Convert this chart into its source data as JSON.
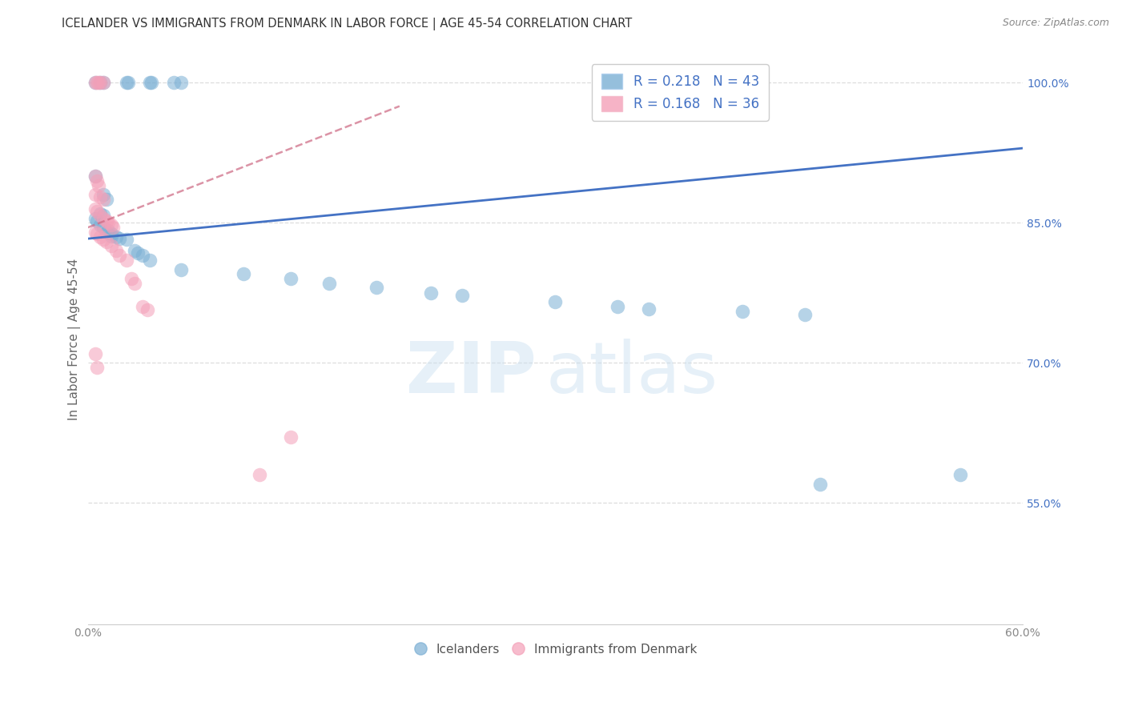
{
  "title": "ICELANDER VS IMMIGRANTS FROM DENMARK IN LABOR FORCE | AGE 45-54 CORRELATION CHART",
  "source": "Source: ZipAtlas.com",
  "ylabel": "In Labor Force | Age 45-54",
  "xmin": 0.0,
  "xmax": 0.6,
  "ymin": 0.42,
  "ymax": 1.03,
  "blue_line_x": [
    0.0,
    0.6
  ],
  "blue_line_y": [
    0.833,
    0.93
  ],
  "pink_line_x": [
    0.0,
    0.2
  ],
  "pink_line_y": [
    0.845,
    0.975
  ],
  "blue_points": [
    [
      0.005,
      1.0
    ],
    [
      0.008,
      1.0
    ],
    [
      0.01,
      1.0
    ],
    [
      0.025,
      1.0
    ],
    [
      0.026,
      1.0
    ],
    [
      0.04,
      1.0
    ],
    [
      0.041,
      1.0
    ],
    [
      0.055,
      1.0
    ],
    [
      0.06,
      1.0
    ],
    [
      0.005,
      0.9
    ],
    [
      0.01,
      0.88
    ],
    [
      0.012,
      0.875
    ],
    [
      0.008,
      0.86
    ],
    [
      0.01,
      0.858
    ],
    [
      0.005,
      0.855
    ],
    [
      0.006,
      0.852
    ],
    [
      0.008,
      0.848
    ],
    [
      0.01,
      0.845
    ],
    [
      0.012,
      0.84
    ],
    [
      0.013,
      0.842
    ],
    [
      0.015,
      0.838
    ],
    [
      0.015,
      0.836
    ],
    [
      0.018,
      0.835
    ],
    [
      0.02,
      0.833
    ],
    [
      0.025,
      0.832
    ],
    [
      0.03,
      0.82
    ],
    [
      0.032,
      0.818
    ],
    [
      0.035,
      0.815
    ],
    [
      0.04,
      0.81
    ],
    [
      0.06,
      0.8
    ],
    [
      0.1,
      0.795
    ],
    [
      0.13,
      0.79
    ],
    [
      0.155,
      0.785
    ],
    [
      0.185,
      0.781
    ],
    [
      0.22,
      0.775
    ],
    [
      0.24,
      0.772
    ],
    [
      0.3,
      0.765
    ],
    [
      0.34,
      0.76
    ],
    [
      0.36,
      0.758
    ],
    [
      0.42,
      0.755
    ],
    [
      0.46,
      0.752
    ],
    [
      0.47,
      0.57
    ],
    [
      0.56,
      0.58
    ]
  ],
  "pink_points": [
    [
      0.005,
      1.0
    ],
    [
      0.006,
      1.0
    ],
    [
      0.007,
      1.0
    ],
    [
      0.008,
      1.0
    ],
    [
      0.01,
      1.0
    ],
    [
      0.005,
      0.9
    ],
    [
      0.006,
      0.895
    ],
    [
      0.007,
      0.89
    ],
    [
      0.005,
      0.88
    ],
    [
      0.008,
      0.878
    ],
    [
      0.01,
      0.875
    ],
    [
      0.005,
      0.865
    ],
    [
      0.006,
      0.862
    ],
    [
      0.008,
      0.858
    ],
    [
      0.01,
      0.855
    ],
    [
      0.012,
      0.852
    ],
    [
      0.013,
      0.85
    ],
    [
      0.015,
      0.848
    ],
    [
      0.016,
      0.845
    ],
    [
      0.005,
      0.84
    ],
    [
      0.006,
      0.838
    ],
    [
      0.008,
      0.835
    ],
    [
      0.01,
      0.832
    ],
    [
      0.012,
      0.83
    ],
    [
      0.015,
      0.825
    ],
    [
      0.018,
      0.82
    ],
    [
      0.02,
      0.815
    ],
    [
      0.025,
      0.81
    ],
    [
      0.028,
      0.79
    ],
    [
      0.03,
      0.785
    ],
    [
      0.035,
      0.76
    ],
    [
      0.038,
      0.757
    ],
    [
      0.005,
      0.71
    ],
    [
      0.006,
      0.695
    ],
    [
      0.13,
      0.62
    ],
    [
      0.11,
      0.58
    ]
  ],
  "watermark_zip": "ZIP",
  "watermark_atlas": "atlas",
  "bg_color": "#ffffff",
  "blue_color": "#7bafd4",
  "pink_color": "#f4a0b8",
  "blue_line_color": "#4472c4",
  "pink_line_color": "#cc6680",
  "grid_color": "#dddddd",
  "title_color": "#333333",
  "right_tick_color": "#4472c4",
  "legend_blue_label": "R = 0.218   N = 43",
  "legend_pink_label": "R = 0.168   N = 36"
}
